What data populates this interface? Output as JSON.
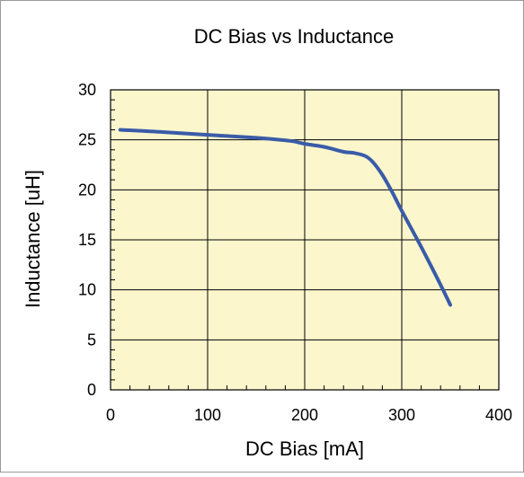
{
  "chart_data": {
    "type": "line",
    "title": "DC Bias vs Inductance",
    "xlabel": "DC Bias [mA]",
    "ylabel": "Inductance [uH]",
    "xlim": [
      0,
      400
    ],
    "ylim": [
      0,
      30
    ],
    "x_ticks": [
      "0",
      "100",
      "200",
      "300",
      "400"
    ],
    "y_ticks": [
      "0",
      "5",
      "10",
      "15",
      "20",
      "25",
      "30"
    ],
    "grid": true,
    "legend": "none",
    "series": [
      {
        "x": [
          10,
          50,
          100,
          150,
          185,
          200,
          220,
          240,
          250,
          262,
          270,
          280,
          290,
          300,
          320,
          340,
          350
        ],
        "y": [
          26.0,
          25.8,
          25.5,
          25.2,
          24.9,
          24.6,
          24.3,
          23.8,
          23.7,
          23.4,
          22.8,
          21.5,
          19.8,
          17.9,
          14.3,
          10.5,
          8.5
        ]
      }
    ],
    "colors": {
      "plot_background": "#fbf6cc",
      "line": "#3a5ba8",
      "grid": "#000000",
      "frame": "#000000"
    }
  }
}
